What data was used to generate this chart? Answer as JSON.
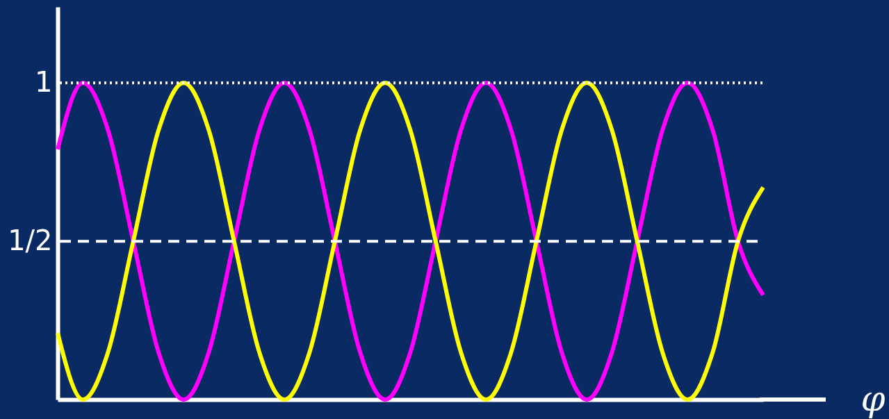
{
  "chart_data": {
    "type": "line",
    "xlabel": "φ",
    "categories": [
      null,
      null,
      null,
      null,
      null,
      null,
      null,
      null,
      null,
      null,
      null,
      null,
      null,
      null,
      null,
      null,
      null,
      null,
      null,
      null,
      null,
      null,
      null,
      null,
      null,
      null,
      null,
      null,
      null
    ],
    "series": [
      {
        "color": "#ff00ff",
        "values": [
          0.79,
          1,
          0.85,
          0.5,
          0.15,
          0,
          0.15,
          0.5,
          0.85,
          1,
          0.85,
          0.5,
          0.15,
          0,
          0.15,
          0.5,
          0.85,
          1,
          0.85,
          0.5,
          0.15,
          0,
          0.15,
          0.5,
          0.85,
          1,
          0.85,
          0.5,
          0.33
        ]
      },
      {
        "color": "#ffff00",
        "values": [
          0.21,
          0,
          0.15,
          0.5,
          0.85,
          1,
          0.85,
          0.5,
          0.15,
          0,
          0.15,
          0.5,
          0.85,
          1,
          0.85,
          0.5,
          0.15,
          0,
          0.15,
          0.5,
          0.85,
          1,
          0.85,
          0.5,
          0.15,
          0,
          0.15,
          0.5,
          0.67
        ]
      }
    ],
    "ylim": [
      0,
      1.24
    ],
    "yticks": [
      1,
      {
        "value": 0.5,
        "label": "1/2"
      }
    ],
    "ref_lines": [
      {
        "axis": "y",
        "value": 1,
        "color": "#ffffff",
        "line_style": "dotted"
      },
      {
        "axis": "y",
        "value": 0.5,
        "color": "#ffffff",
        "line_style": "dashed"
      }
    ],
    "tick_labels": "y",
    "grid": false,
    "marker": "none",
    "line_style": "solid"
  }
}
